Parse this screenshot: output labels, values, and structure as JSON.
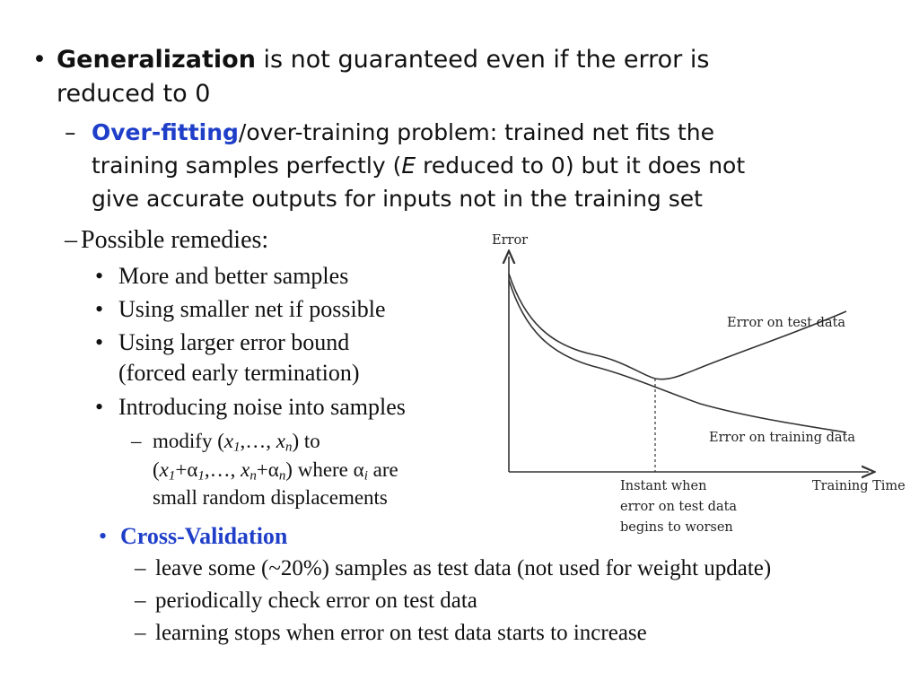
{
  "slide": {
    "bullet1": {
      "bold": "Generalization",
      "rest_line1": " is not guaranteed even if the error is",
      "line2": "reduced to 0"
    },
    "sub1": {
      "dash": "–",
      "bold": "Over-fitting",
      "rest_line1": "/over-training problem: trained net fits the",
      "line2_a": "training samples perfectly (",
      "line2_italic": "E",
      "line2_b": " reduced to 0) but it does not",
      "line3": "give accurate outputs for inputs not in the training set"
    },
    "remedies": {
      "dash": "–",
      "title": "Possible remedies:",
      "items": [
        "More and better samples",
        "Using smaller net if possible",
        "Using larger error bound",
        "(forced early termination)",
        "Introducing noise into samples"
      ],
      "noise_line1": {
        "a": "modify (",
        "x1": "x",
        "s1": "1",
        "b": ",…, ",
        "xn": "x",
        "sn": "n",
        "c": ") to"
      },
      "noise_line2": {
        "a": "(",
        "x1": "x",
        "s1": "1",
        "b": "+α",
        "s1b": "1",
        "c": ",…, ",
        "xn": "x",
        "sn": "n",
        "d": "+α",
        "snb": "n",
        "e": ") where α",
        "si": "i",
        "f": " are"
      },
      "noise_line3": "small random displacements"
    },
    "cross_validation": {
      "bullet": "•",
      "title": "Cross-Validation",
      "items": [
        "leave some (~20%) samples as test data (not used for weight update)",
        "periodically check error on test data",
        "learning stops when error on test data starts to increase"
      ]
    }
  },
  "chart_data": {
    "type": "line",
    "ylabel": "Error",
    "xlabel": "Training Time",
    "series": [
      {
        "name": "Error on test data"
      },
      {
        "name": "Error on training data"
      }
    ],
    "annotation": [
      "Instant when",
      "error on test data",
      "begins to worsen"
    ],
    "colors": {
      "line": "#333333"
    }
  }
}
